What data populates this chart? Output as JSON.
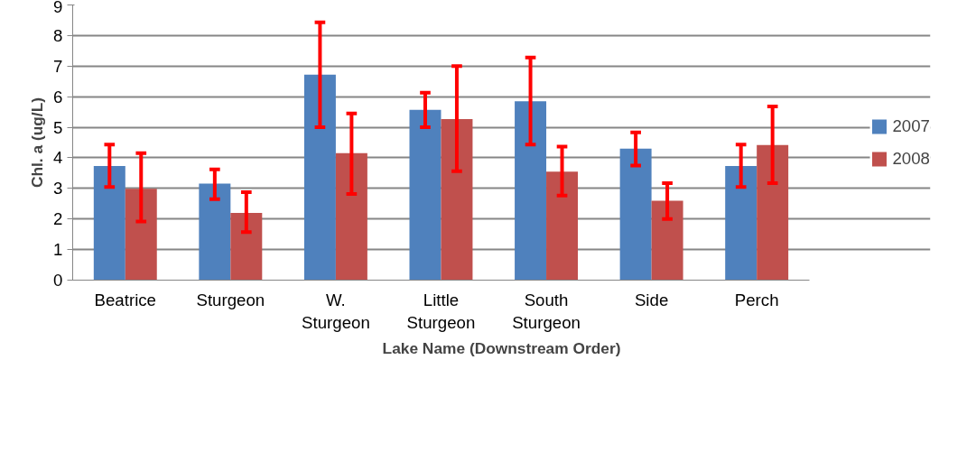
{
  "chart_data": {
    "type": "bar",
    "xlabel": "Lake Name (Downstream Order)",
    "ylabel": "Chl. a (ug/L)",
    "categories": [
      "Beatrice",
      "Sturgeon",
      "W. Sturgeon",
      "Little Sturgeon",
      "South Sturgeon",
      "Side",
      "Perch"
    ],
    "series": [
      {
        "name": "2007",
        "color": "#4f81bd",
        "values": [
          3.73,
          3.16,
          6.72,
          5.57,
          5.85,
          4.3,
          3.73
        ],
        "errors": [
          [
            3.05,
            4.43
          ],
          [
            2.65,
            3.62
          ],
          [
            5.0,
            8.43
          ],
          [
            5.0,
            6.13
          ],
          [
            4.43,
            7.28
          ],
          [
            3.75,
            4.83
          ],
          [
            3.05,
            4.43
          ]
        ]
      },
      {
        "name": "2008",
        "color": "#c0504d",
        "values": [
          2.99,
          2.2,
          4.15,
          5.27,
          3.55,
          2.6,
          4.42
        ],
        "errors": [
          [
            1.92,
            4.15
          ],
          [
            1.57,
            2.88
          ],
          [
            2.82,
            5.45
          ],
          [
            3.56,
            7.0
          ],
          [
            2.77,
            4.37
          ],
          [
            2.0,
            3.17
          ],
          [
            3.17,
            5.68
          ]
        ]
      }
    ],
    "ylim": [
      0,
      9
    ],
    "yticks": [
      0,
      1,
      2,
      3,
      4,
      5,
      6,
      7,
      8,
      9
    ],
    "grid": "y",
    "legend": "right"
  }
}
